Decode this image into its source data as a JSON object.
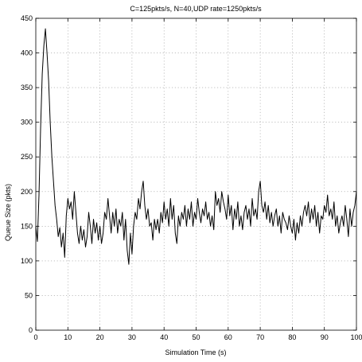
{
  "chart_data": {
    "type": "line",
    "title": "C=125pkts/s, N=40,UDP rate=1250pkts/s",
    "xlabel": "Simulation Time (s)",
    "ylabel": "Queue Size (pkts)",
    "xlim": [
      0,
      100
    ],
    "ylim": [
      0,
      450
    ],
    "xticks": [
      0,
      10,
      20,
      30,
      40,
      50,
      60,
      70,
      80,
      90,
      100
    ],
    "yticks": [
      0,
      50,
      100,
      150,
      200,
      250,
      300,
      350,
      400,
      450
    ],
    "grid": true,
    "legend": "none",
    "line_color": "#000000",
    "series": [
      {
        "x": [
          0,
          0.5,
          1,
          1.5,
          2,
          2.5,
          3,
          3.5,
          4,
          4.5,
          5,
          5.5,
          6,
          6.5,
          7,
          7.5,
          8,
          8.5,
          9,
          9.5,
          10,
          10.5,
          11,
          11.5,
          12,
          12.5,
          13,
          13.5,
          14,
          14.5,
          15,
          15.5,
          16,
          16.5,
          17,
          17.5,
          18,
          18.5,
          19,
          19.5,
          20,
          20.5,
          21,
          21.5,
          22,
          22.5,
          23,
          23.5,
          24,
          24.5,
          25,
          25.5,
          26,
          26.5,
          27,
          27.5,
          28,
          28.5,
          29,
          29.5,
          30,
          30.5,
          31,
          31.5,
          32,
          32.5,
          33,
          33.5,
          34,
          34.5,
          35,
          35.5,
          36,
          36.5,
          37,
          37.5,
          38,
          38.5,
          39,
          39.5,
          40,
          40.5,
          41,
          41.5,
          42,
          42.5,
          43,
          43.5,
          44,
          44.5,
          45,
          45.5,
          46,
          46.5,
          47,
          47.5,
          48,
          48.5,
          49,
          49.5,
          50,
          50.5,
          51,
          51.5,
          52,
          52.5,
          53,
          53.5,
          54,
          54.5,
          55,
          55.5,
          56,
          56.5,
          57,
          57.5,
          58,
          58.5,
          59,
          59.5,
          60,
          60.5,
          61,
          61.5,
          62,
          62.5,
          63,
          63.5,
          64,
          64.5,
          65,
          65.5,
          66,
          66.5,
          67,
          67.5,
          68,
          68.5,
          69,
          69.5,
          70,
          70.5,
          71,
          71.5,
          72,
          72.5,
          73,
          73.5,
          74,
          74.5,
          75,
          75.5,
          76,
          76.5,
          77,
          77.5,
          78,
          78.5,
          79,
          79.5,
          80,
          80.5,
          81,
          81.5,
          82,
          82.5,
          83,
          83.5,
          84,
          84.5,
          85,
          85.5,
          86,
          86.5,
          87,
          87.5,
          88,
          88.5,
          89,
          89.5,
          90,
          90.5,
          91,
          91.5,
          92,
          92.5,
          93,
          93.5,
          94,
          94.5,
          95,
          95.5,
          96,
          96.5,
          97,
          97.5,
          98,
          98.5,
          99,
          99.5,
          100
        ],
        "values": [
          150,
          128,
          195,
          290,
          370,
          410,
          435,
          400,
          360,
          300,
          250,
          215,
          180,
          160,
          135,
          148,
          120,
          140,
          105,
          165,
          190,
          175,
          185,
          160,
          200,
          170,
          140,
          125,
          150,
          130,
          145,
          120,
          135,
          170,
          150,
          125,
          160,
          140,
          155,
          130,
          150,
          125,
          140,
          170,
          160,
          190,
          165,
          140,
          170,
          150,
          175,
          140,
          160,
          150,
          170,
          130,
          160,
          115,
          95,
          140,
          110,
          150,
          170,
          160,
          190,
          175,
          200,
          215,
          180,
          160,
          175,
          150,
          155,
          130,
          160,
          145,
          160,
          140,
          170,
          155,
          185,
          160,
          175,
          150,
          190,
          160,
          180,
          140,
          125,
          165,
          150,
          170,
          160,
          180,
          150,
          175,
          160,
          185,
          150,
          170,
          160,
          190,
          170,
          155,
          175,
          165,
          185,
          160,
          170,
          150,
          165,
          145,
          200,
          180,
          190,
          170,
          200,
          185,
          175,
          160,
          195,
          165,
          180,
          145,
          175,
          160,
          185,
          150,
          165,
          145,
          170,
          180,
          160,
          175,
          150,
          190,
          165,
          175,
          160,
          200,
          215,
          180,
          170,
          185,
          160,
          180,
          155,
          170,
          150,
          165,
          175,
          150,
          165,
          140,
          170,
          160,
          155,
          145,
          165,
          150,
          140,
          160,
          130,
          155,
          140,
          165,
          150,
          170,
          180,
          165,
          185,
          155,
          175,
          160,
          180,
          150,
          170,
          140,
          165,
          160,
          180,
          170,
          195,
          165,
          175,
          160,
          185,
          150,
          165,
          140,
          155,
          165,
          150,
          180,
          160,
          135,
          175,
          150,
          170,
          180,
          200
        ]
      }
    ]
  }
}
